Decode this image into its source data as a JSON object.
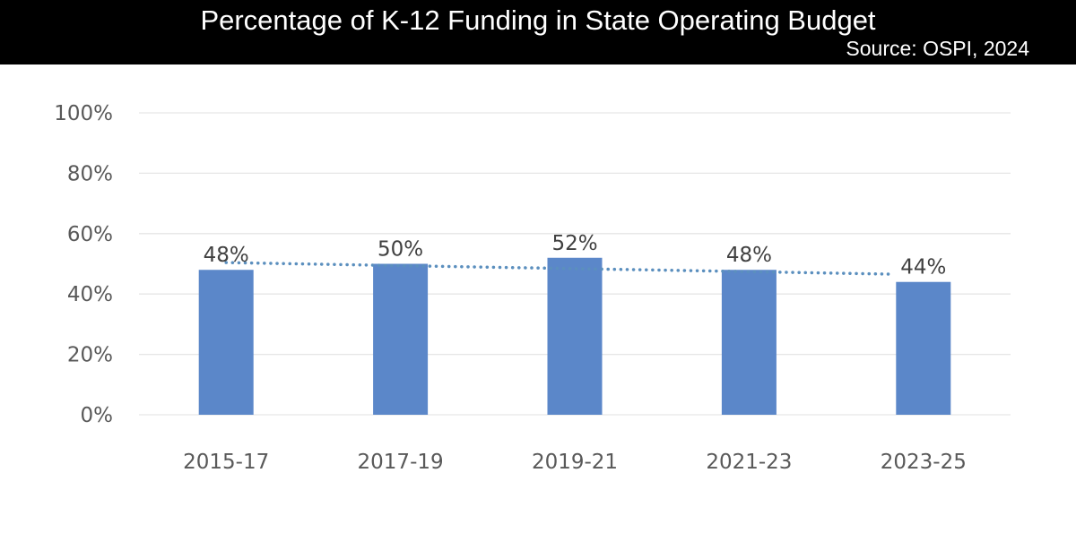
{
  "chart_data": {
    "type": "bar",
    "title": "Percentage of K-12 Funding in State Operating Budget",
    "subtitle": "Source: OSPI, 2024",
    "categories": [
      "2015-17",
      "2017-19",
      "2019-21",
      "2021-23",
      "2023-25"
    ],
    "values": [
      48,
      50,
      52,
      48,
      44
    ],
    "data_labels": [
      "48%",
      "50%",
      "52%",
      "48%",
      "44%"
    ],
    "y_ticks": [
      0,
      20,
      40,
      60,
      80,
      100
    ],
    "y_tick_labels": [
      "0%",
      "20%",
      "40%",
      "60%",
      "80%",
      "100%"
    ],
    "ylim": [
      0,
      100
    ],
    "xlabel": "",
    "ylabel": "",
    "grid": true,
    "trendline": {
      "type": "linear",
      "style": "dotted"
    },
    "colors": {
      "bar": "#5b87c9",
      "trendline": "#5b8fbe",
      "grid": "#e6e6e6",
      "header_bg": "#000000",
      "header_text": "#ffffff"
    }
  }
}
